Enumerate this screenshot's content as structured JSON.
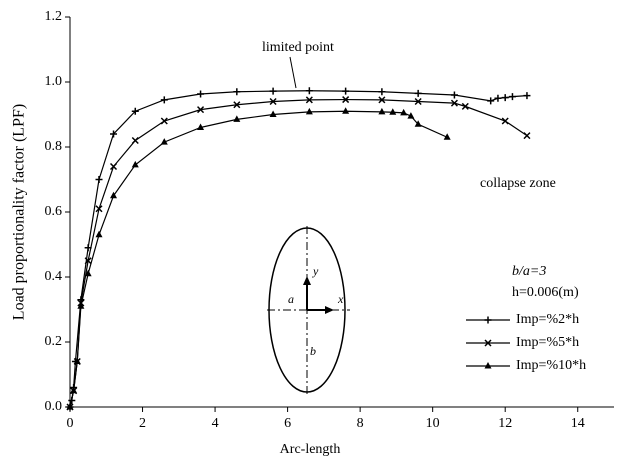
{
  "chart_data": {
    "type": "line",
    "xlabel": "Arc-length",
    "ylabel": "Load proportionality factor (LPF)",
    "xlim": [
      0,
      15
    ],
    "ylim": [
      0,
      1.2
    ],
    "xticks": [
      0,
      2,
      4,
      6,
      8,
      10,
      12,
      14
    ],
    "yticks": [
      {
        "value": 0,
        "label": "0.0"
      },
      0.2,
      0.4,
      0.6,
      0.8,
      {
        "value": 1,
        "label": "1.0"
      },
      1.2
    ],
    "legend": "lower right",
    "annotations": {
      "limited_point": "limited point",
      "collapse_zone": "collapse zone",
      "ratio": "b/a=3",
      "thickness": "h=0.006(m)",
      "axis_y": "y",
      "axis_x": "x",
      "semi_a": "a",
      "semi_b": "b"
    },
    "series": [
      {
        "name": "Imp=%2*h",
        "color": "#000000",
        "marker": "plus",
        "x": [
          0,
          0.05,
          0.1,
          0.15,
          0.3,
          0.5,
          0.8,
          1.2,
          1.8,
          2.6,
          3.6,
          4.6,
          5.6,
          6.6,
          7.6,
          8.6,
          9.6,
          10.6,
          11.6,
          11.8,
          12.0,
          12.2,
          12.6
        ],
        "values": [
          0,
          0.02,
          0.06,
          0.14,
          0.33,
          0.49,
          0.7,
          0.84,
          0.91,
          0.945,
          0.963,
          0.97,
          0.972,
          0.973,
          0.972,
          0.97,
          0.965,
          0.96,
          0.942,
          0.95,
          0.952,
          0.955,
          0.958
        ]
      },
      {
        "name": "Imp=%5*h",
        "color": "#000000",
        "marker": "cross",
        "x": [
          0,
          0.1,
          0.2,
          0.3,
          0.5,
          0.8,
          1.2,
          1.8,
          2.6,
          3.6,
          4.6,
          5.6,
          6.6,
          7.6,
          8.6,
          9.6,
          10.6,
          10.9,
          12.0,
          12.6
        ],
        "values": [
          0,
          0.05,
          0.14,
          0.32,
          0.45,
          0.61,
          0.74,
          0.82,
          0.88,
          0.915,
          0.93,
          0.94,
          0.945,
          0.946,
          0.945,
          0.94,
          0.935,
          0.925,
          0.88,
          0.835
        ]
      },
      {
        "name": "Imp=%10*h",
        "color": "#000000",
        "marker": "triangle",
        "x": [
          0,
          0.1,
          0.2,
          0.3,
          0.5,
          0.8,
          1.2,
          1.8,
          2.6,
          3.6,
          4.6,
          5.6,
          6.6,
          7.6,
          8.6,
          8.9,
          9.2,
          9.4,
          9.6,
          10.4
        ],
        "values": [
          0,
          0.05,
          0.14,
          0.31,
          0.41,
          0.53,
          0.65,
          0.745,
          0.815,
          0.86,
          0.885,
          0.9,
          0.908,
          0.91,
          0.908,
          0.907,
          0.905,
          0.895,
          0.87,
          0.83
        ]
      }
    ]
  }
}
